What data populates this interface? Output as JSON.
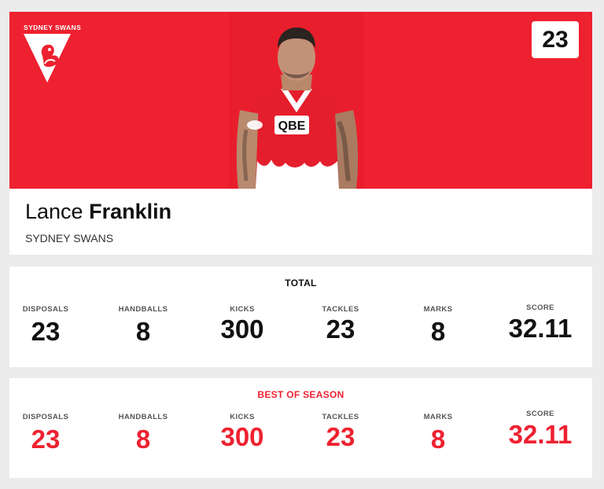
{
  "team": {
    "logo_text": "SYDNEY SWANS",
    "name": "SYDNEY SWANS",
    "colors": {
      "primary": "#ee2130",
      "secondary": "#ffffff"
    }
  },
  "player": {
    "first_name": "Lance",
    "last_name": "Franklin",
    "jersey_number": "23"
  },
  "total": {
    "title": "TOTAL",
    "stats": [
      {
        "label": "DISPOSALS",
        "value": "23"
      },
      {
        "label": "HANDBALLS",
        "value": "8"
      },
      {
        "label": "KICKS",
        "value": "300"
      },
      {
        "label": "TACKLES",
        "value": "23"
      },
      {
        "label": "MARKS",
        "value": "8"
      },
      {
        "label": "SCORE",
        "value": "32.11"
      }
    ]
  },
  "best": {
    "title": "BEST OF SEASON",
    "stats": [
      {
        "label": "DISPOSALS",
        "value": "23"
      },
      {
        "label": "HANDBALLS",
        "value": "8"
      },
      {
        "label": "KICKS",
        "value": "300"
      },
      {
        "label": "TACKLES",
        "value": "23"
      },
      {
        "label": "MARKS",
        "value": "8"
      },
      {
        "label": "SCORE",
        "value": "32.11"
      }
    ]
  }
}
